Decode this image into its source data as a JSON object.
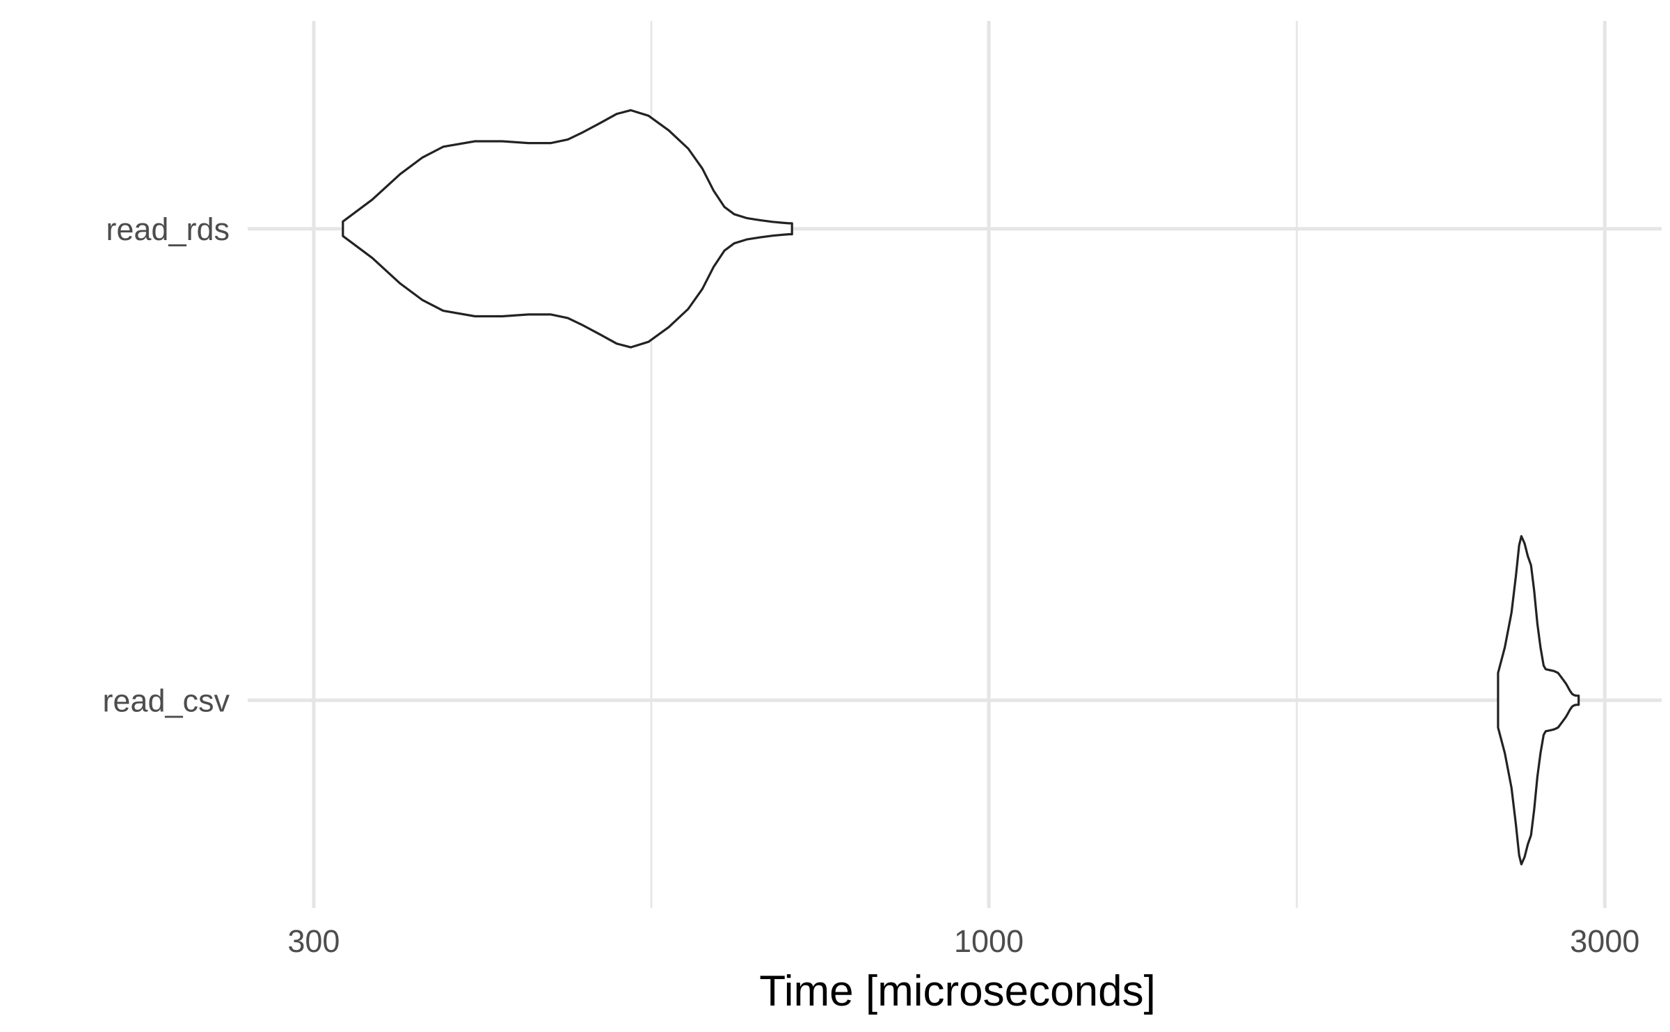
{
  "chart_data": {
    "type": "violin",
    "orientation": "horizontal",
    "xlabel": "Time [microseconds]",
    "ylabel": "",
    "x_scale": "log10",
    "xlim": [
      270,
      3320
    ],
    "x_ticks": [
      300,
      1000,
      3000
    ],
    "x_tick_labels": [
      "300",
      "1000",
      "3000"
    ],
    "x_minor_ticks": [
      547.7,
      1732
    ],
    "grid": true,
    "categories": [
      "read_rds",
      "read_csv"
    ],
    "series": [
      {
        "category": "read_rds",
        "min": 316,
        "max": 624,
        "density": [
          [
            316,
            0.04
          ],
          [
            323,
            0.09
          ],
          [
            333,
            0.16
          ],
          [
            350,
            0.3
          ],
          [
            364,
            0.39
          ],
          [
            378,
            0.45
          ],
          [
            400,
            0.48
          ],
          [
            420,
            0.48
          ],
          [
            440,
            0.47
          ],
          [
            458,
            0.47
          ],
          [
            472,
            0.49
          ],
          [
            485,
            0.53
          ],
          [
            500,
            0.58
          ],
          [
            515,
            0.63
          ],
          [
            528,
            0.65
          ],
          [
            545,
            0.62
          ],
          [
            565,
            0.54
          ],
          [
            585,
            0.44
          ],
          [
            600,
            0.33
          ],
          [
            612,
            0.21
          ],
          [
            624,
            0.12
          ],
          [
            635,
            0.08
          ],
          [
            650,
            0.058
          ],
          [
            665,
            0.047
          ],
          [
            680,
            0.038
          ],
          [
            692,
            0.033
          ],
          [
            700,
            0.03
          ],
          [
            704,
            0.03
          ]
        ]
      },
      {
        "category": "read_csv",
        "min": 2480,
        "max": 3120,
        "density": [
          [
            2480,
            0.15
          ],
          [
            2510,
            0.29
          ],
          [
            2540,
            0.48
          ],
          [
            2560,
            0.68
          ],
          [
            2575,
            0.85
          ],
          [
            2585,
            0.9
          ],
          [
            2600,
            0.86
          ],
          [
            2615,
            0.79
          ],
          [
            2630,
            0.74
          ],
          [
            2645,
            0.6
          ],
          [
            2660,
            0.42
          ],
          [
            2675,
            0.29
          ],
          [
            2690,
            0.19
          ],
          [
            2700,
            0.17
          ],
          [
            2720,
            0.165
          ],
          [
            2740,
            0.16
          ],
          [
            2760,
            0.15
          ],
          [
            2780,
            0.12
          ],
          [
            2800,
            0.09
          ],
          [
            2810,
            0.07
          ],
          [
            2820,
            0.05
          ],
          [
            2830,
            0.035
          ],
          [
            2840,
            0.028
          ],
          [
            2850,
            0.025
          ],
          [
            2863,
            0.025
          ]
        ]
      }
    ]
  }
}
